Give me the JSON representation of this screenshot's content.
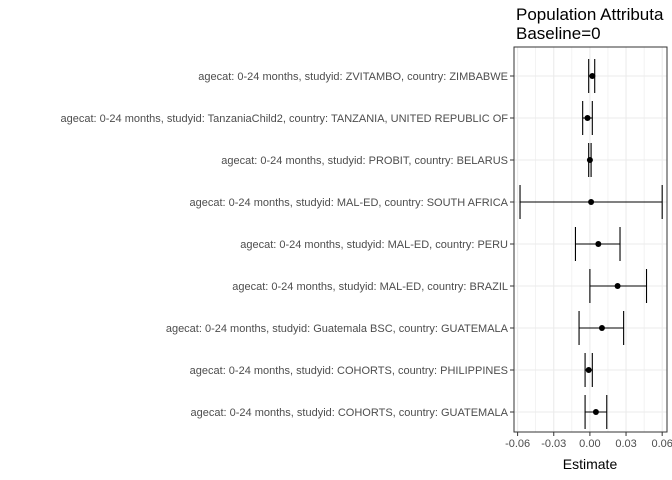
{
  "chart_data": {
    "type": "scatter",
    "subtype": "forest-plot-with-error-bars",
    "title": "Population Attributa",
    "subtitle": "Baseline=0",
    "xlabel": "Estimate",
    "ylabel": "",
    "xlim": [
      -0.063,
      0.064
    ],
    "xticks": [
      -0.06,
      -0.03,
      0.0,
      0.03,
      0.06
    ],
    "xtick_labels": [
      "-0.06",
      "-0.03",
      "0.00",
      "0.03",
      "0.06"
    ],
    "grid": true,
    "legend": "none",
    "colors": {
      "point": "#000000",
      "errorbar": "#000000",
      "grid": "#ebebeb",
      "panel_border": "#333333"
    },
    "categories": [
      "agecat: 0-24 months, studyid: ZVITAMBO, country: ZIMBABWE",
      "agecat: 0-24 months, studyid: TanzaniaChild2, country: TANZANIA, UNITED REPUBLIC OF",
      "agecat: 0-24 months, studyid: PROBIT, country: BELARUS",
      "agecat: 0-24 months, studyid: MAL-ED, country: SOUTH AFRICA",
      "agecat: 0-24 months, studyid: MAL-ED, country: PERU",
      "agecat: 0-24 months, studyid: MAL-ED, country: BRAZIL",
      "agecat: 0-24 months, studyid: Guatemala BSC, country: GUATEMALA",
      "agecat: 0-24 months, studyid: COHORTS, country: PHILIPPINES",
      "agecat: 0-24 months, studyid: COHORTS, country: GUATEMALA"
    ],
    "estimates": [
      0.002,
      -0.002,
      0.0,
      0.001,
      0.007,
      0.023,
      0.01,
      -0.001,
      0.005
    ],
    "lower": [
      -0.001,
      -0.006,
      -0.001,
      -0.058,
      -0.012,
      0.0,
      -0.009,
      -0.004,
      -0.004
    ],
    "upper": [
      0.004,
      0.002,
      0.001,
      0.06,
      0.025,
      0.047,
      0.028,
      0.002,
      0.014
    ]
  }
}
